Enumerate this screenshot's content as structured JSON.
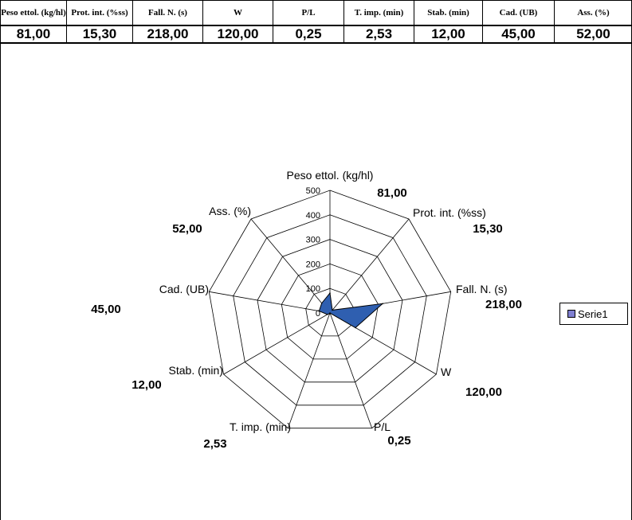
{
  "table": {
    "headers": [
      "Peso ettol. (kg/hl)",
      "Prot. int. (%ss)",
      "Fall. N. (s)",
      "W",
      "P/L",
      "T. imp. (min)",
      "Stab. (min)",
      "Cad. (UB)",
      "Ass. (%)"
    ],
    "values": [
      "81,00",
      "15,30",
      "218,00",
      "120,00",
      "0,25",
      "2,53",
      "12,00",
      "45,00",
      "52,00"
    ]
  },
  "chart_data": {
    "type": "radar",
    "categories": [
      "Peso ettol. (kg/hl)",
      "Prot. int. (%ss)",
      "Fall. N. (s)",
      "W",
      "P/L",
      "T. imp. (min)",
      "Stab. (min)",
      "Cad. (UB)",
      "Ass. (%)"
    ],
    "value_labels": [
      "81,00",
      "15,30",
      "218,00",
      "120,00",
      "0,25",
      "2,53",
      "12,00",
      "45,00",
      "52,00"
    ],
    "series": [
      {
        "name": "Serie1",
        "values": [
          81,
          15.3,
          218,
          120,
          0.25,
          2.53,
          12,
          45,
          52
        ],
        "color": "#2f5fb0"
      }
    ],
    "radial_ticks": [
      0,
      100,
      200,
      300,
      400,
      500
    ],
    "rlim": [
      0,
      500
    ],
    "grid": true,
    "legend": "right"
  }
}
